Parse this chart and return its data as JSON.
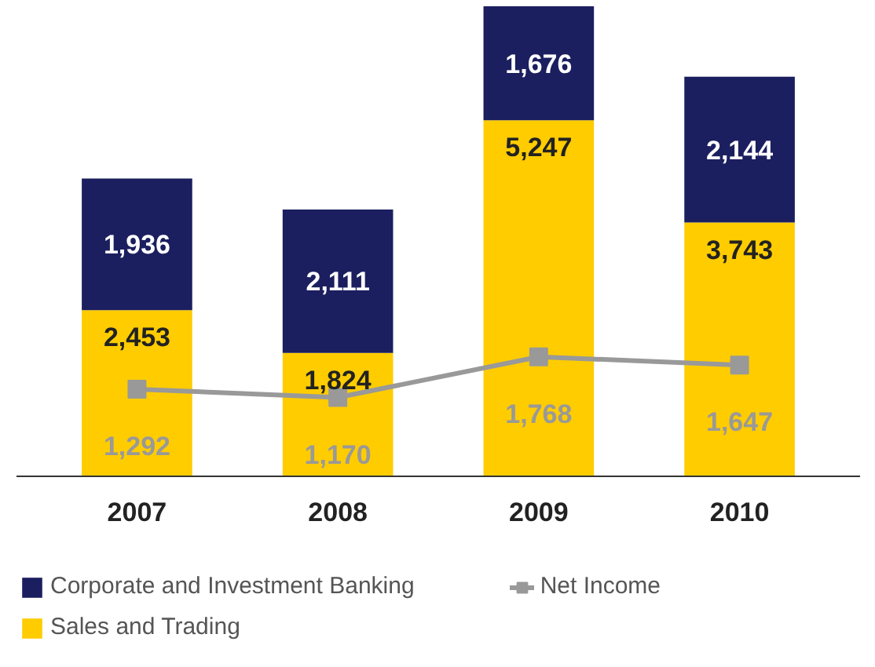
{
  "chart_data": {
    "type": "bar",
    "stacked": true,
    "categories": [
      "2007",
      "2008",
      "2009",
      "2010"
    ],
    "series": [
      {
        "name": "Sales and Trading",
        "color": "#ffcc00",
        "values": [
          2453,
          1824,
          5247,
          3743
        ],
        "value_labels": [
          "2,453",
          "1,824",
          "5,247",
          "3,743"
        ]
      },
      {
        "name": "Corporate and Investment Banking",
        "color": "#1b1f5f",
        "values": [
          1936,
          2111,
          1676,
          2144
        ],
        "value_labels": [
          "1,936",
          "2,111",
          "1,676",
          "2,144"
        ]
      },
      {
        "name": "Net Income",
        "type": "line",
        "color": "#999999",
        "values": [
          1292,
          1170,
          1768,
          1647
        ],
        "value_labels": [
          "1,292",
          "1,170",
          "1,768",
          "1,647"
        ]
      }
    ],
    "legend": "bottom",
    "marker": "square",
    "tick_labels": "x"
  }
}
